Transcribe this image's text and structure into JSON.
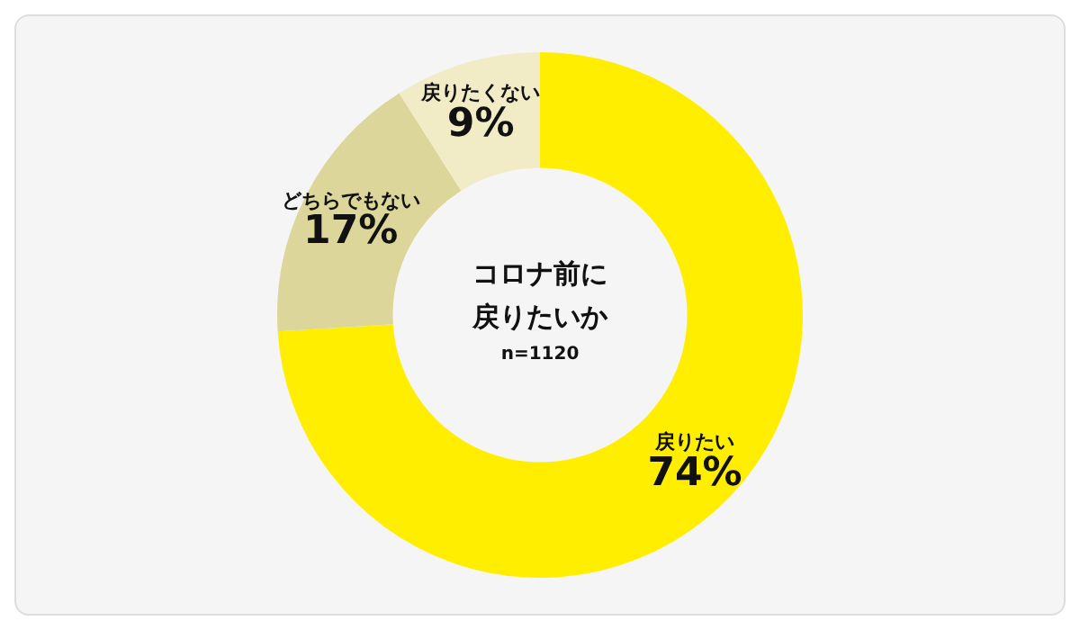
{
  "chart_data": {
    "type": "donut",
    "title": "コロナ前に戻りたいか",
    "subtitle": "n=1120",
    "categories": [
      "戻りたい",
      "どちらでもない",
      "戻りたくない"
    ],
    "values": [
      74,
      17,
      9
    ],
    "value_labels": [
      "74%",
      "17%",
      "9%"
    ],
    "colors": [
      "#ffee00",
      "#ddd69b",
      "#f1ecc6"
    ],
    "legend": false
  }
}
